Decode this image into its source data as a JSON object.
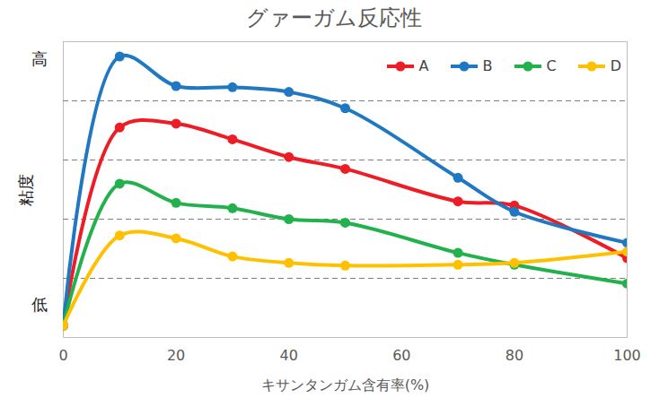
{
  "chart_data": {
    "type": "line",
    "title": "グァーガム反応性",
    "x_label": "キサンタンガム含有率(%)",
    "y_label": "粘度",
    "x": [
      0,
      10,
      20,
      30,
      40,
      50,
      70,
      80,
      100
    ],
    "series": [
      {
        "name": "A",
        "color": "#ee1c25",
        "values": [
          4,
          71,
          72.3,
          67,
          61,
          57,
          46,
          44.6,
          26.8
        ]
      },
      {
        "name": "B",
        "color": "#1f78c1",
        "values": [
          4,
          95,
          85,
          84.6,
          83,
          77.5,
          54,
          42.5,
          32
        ]
      },
      {
        "name": "C",
        "color": "#22b14c",
        "values": [
          4,
          52,
          45.5,
          43.7,
          40,
          38.8,
          28.6,
          24.6,
          18.2
        ]
      },
      {
        "name": "D",
        "color": "#ffc000",
        "values": [
          4,
          34.5,
          33.5,
          27.4,
          25.2,
          24.3,
          24.6,
          25.2,
          29
        ]
      }
    ],
    "xlim": [
      0,
      100
    ],
    "xticks": [
      0,
      20,
      40,
      60,
      80,
      100
    ],
    "ylim": [
      0,
      100
    ],
    "yticks": [
      {
        "value": 11,
        "label": "低"
      },
      {
        "value": 20,
        "label": null
      },
      {
        "value": 40,
        "label": null
      },
      {
        "value": 60,
        "label": null
      },
      {
        "value": 80,
        "label": null
      },
      {
        "value": 94,
        "label": "高"
      }
    ],
    "grid": true,
    "legend": "top-right",
    "marker": "circle",
    "line_style": "solid"
  }
}
